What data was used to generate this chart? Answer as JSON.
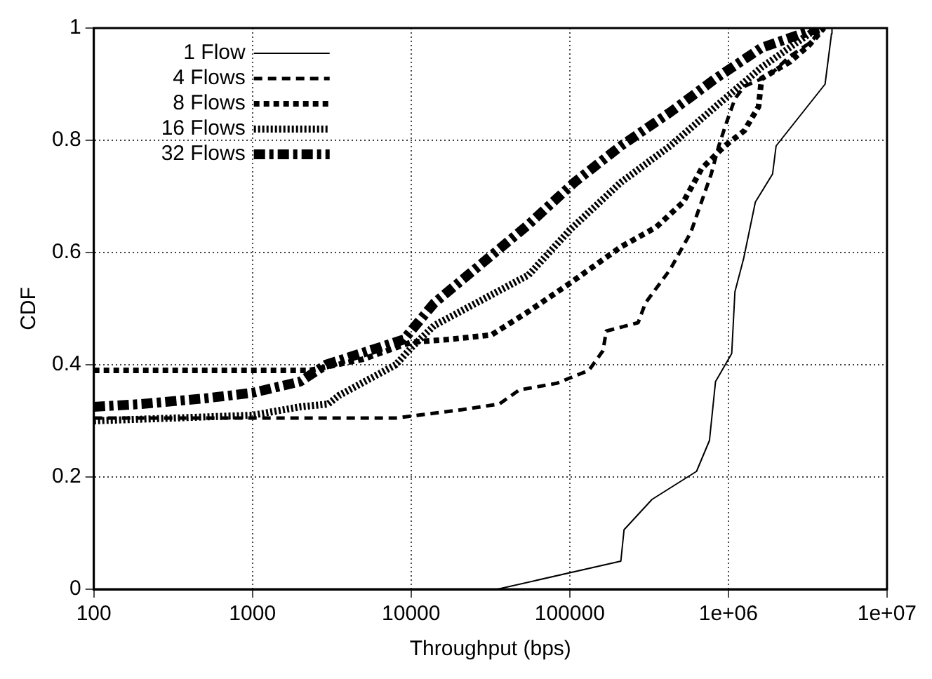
{
  "chart_data": {
    "type": "line",
    "xlabel": "Throughput (bps)",
    "ylabel": "CDF",
    "log": "x",
    "xlim": [
      100,
      10000000
    ],
    "xticks": [
      100,
      1000,
      10000,
      100000,
      {
        "value": 1000000,
        "label": "1e+06"
      },
      {
        "value": 10000000,
        "label": "1e+07"
      }
    ],
    "ylim": [
      0,
      1
    ],
    "yticks": [
      0,
      0.2,
      0.4,
      0.6,
      0.8,
      1
    ],
    "grid": true,
    "legend": "top left",
    "series": [
      {
        "name": "1 Flow",
        "color": "#000000",
        "line_style": "solid",
        "x": [
          35000,
          210000,
          220000,
          330000,
          630000,
          760000,
          830000,
          1050000,
          1100000,
          1250000,
          1480000,
          1900000,
          2000000,
          4070000,
          4470000,
          4500000
        ],
        "values": [
          0,
          0.05,
          0.106,
          0.16,
          0.21,
          0.265,
          0.37,
          0.42,
          0.53,
          0.59,
          0.69,
          0.74,
          0.79,
          0.9,
          0.99,
          1
        ]
      },
      {
        "name": "4 Flows",
        "color": "#000000",
        "line_style": "dashed",
        "x": [
          100,
          1000,
          8000,
          21000,
          36000,
          48000,
          83000,
          132000,
          162000,
          170000,
          270000,
          300000,
          430000,
          580000,
          780000,
          870000,
          980000,
          1100000,
          1260000,
          1820000,
          2450000,
          3240000,
          4000000
        ],
        "values": [
          0.305,
          0.305,
          0.305,
          0.32,
          0.33,
          0.355,
          0.367,
          0.39,
          0.425,
          0.46,
          0.475,
          0.51,
          0.57,
          0.636,
          0.74,
          0.79,
          0.834,
          0.874,
          0.896,
          0.916,
          0.95,
          0.973,
          1
        ]
      },
      {
        "name": "8 Flows",
        "color": "#000000",
        "line_style": "dotted",
        "x": [
          100,
          1000,
          2300,
          5000,
          10000,
          17000,
          32000,
          55000,
          100000,
          210000,
          350000,
          520000,
          680000,
          950000,
          1260000,
          1550000,
          1620000,
          2450000,
          3240000,
          4000000
        ],
        "values": [
          0.39,
          0.39,
          0.39,
          0.41,
          0.44,
          0.445,
          0.453,
          0.495,
          0.545,
          0.61,
          0.645,
          0.69,
          0.75,
          0.79,
          0.817,
          0.86,
          0.91,
          0.94,
          0.97,
          1
        ]
      },
      {
        "name": "16 Flows",
        "color": "#000000",
        "line_style": "dotted",
        "x": [
          100,
          1000,
          2000,
          3000,
          3500,
          8000,
          10000,
          14000,
          55000,
          100000,
          210000,
          430000,
          830000,
          1620000,
          3240000,
          4000000
        ],
        "values": [
          0.3,
          0.31,
          0.325,
          0.33,
          0.345,
          0.4,
          0.43,
          0.47,
          0.56,
          0.64,
          0.725,
          0.79,
          0.86,
          0.93,
          0.99,
          1
        ]
      },
      {
        "name": "32 Flows",
        "color": "#000000",
        "line_style": "dashed",
        "x": [
          100,
          200,
          500,
          1000,
          2000,
          2900,
          9000,
          14000,
          27000,
          55000,
          107000,
          210000,
          430000,
          830000,
          1620000,
          3700000
        ],
        "values": [
          0.325,
          0.33,
          0.34,
          0.35,
          0.37,
          0.4,
          0.445,
          0.51,
          0.577,
          0.65,
          0.725,
          0.79,
          0.85,
          0.91,
          0.965,
          1
        ]
      }
    ]
  }
}
